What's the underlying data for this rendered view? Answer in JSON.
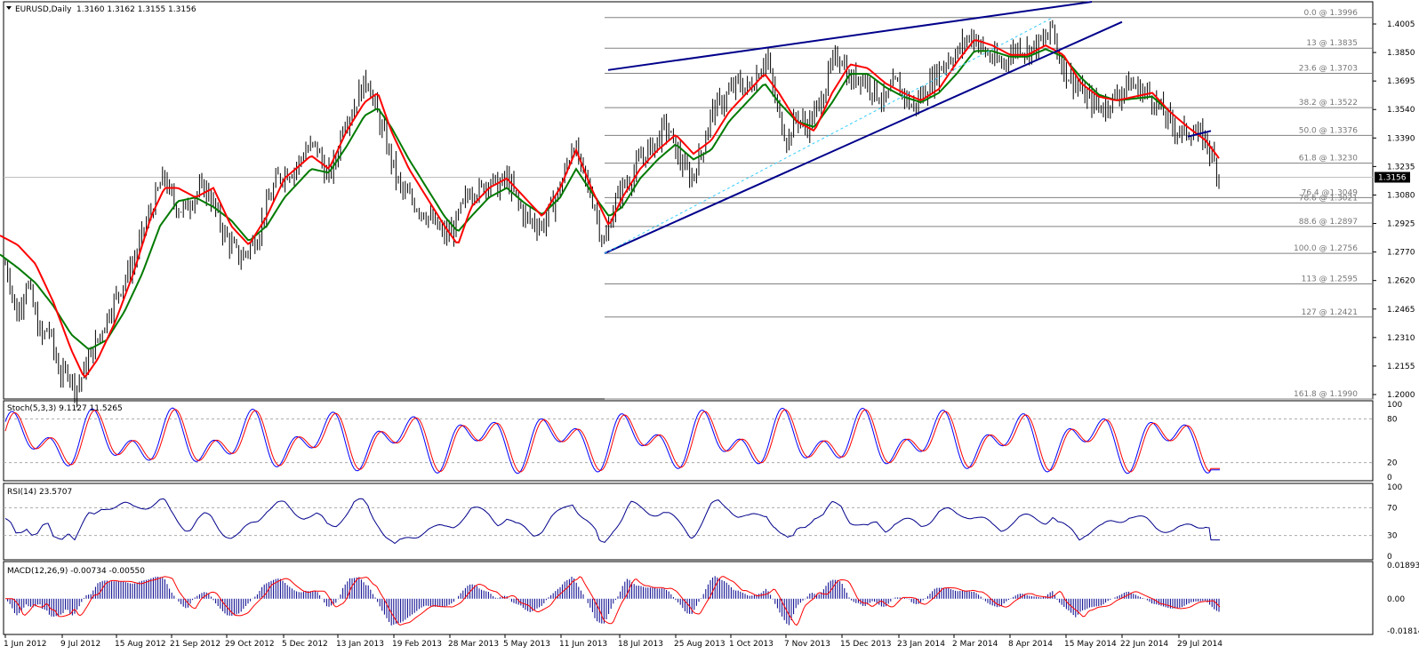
{
  "chart_data": {
    "type": "ohlc",
    "colors": {
      "price": "#000000",
      "fast_ma": "#ff0000",
      "slow_ma": "#007a00",
      "trendline": "#00008b",
      "stoch_main": "#0000ff",
      "stoch_signal": "#ff0000",
      "rsi": "#00008b",
      "macd_hist": "#00008b",
      "macd_signal": "#ff0000",
      "fib": "#808080",
      "current_price_bg": "#000000"
    },
    "main": {
      "header": {
        "symbol": "EURUSD,Daily",
        "values": "1.3160 1.3162 1.3155 1.3156"
      },
      "ylim": [
        1.199,
        1.4079
      ],
      "y_ticks": [
        "1.4005",
        "1.3850",
        "1.3695",
        "1.3540",
        "1.3390",
        "1.3235",
        "1.3080",
        "1.2925",
        "1.2770",
        "1.2620",
        "1.2465",
        "1.2310",
        "1.2155",
        "1.2000"
      ],
      "current_price": 1.3156,
      "current_price_label": "1.3156",
      "fib_levels": [
        {
          "label": "0.0 @ 1.3996",
          "value": 1.3996
        },
        {
          "label": "13 @ 1.3835",
          "value": 1.3835
        },
        {
          "label": "23.6 @ 1.3703",
          "value": 1.3703
        },
        {
          "label": "38.2 @ 1.3522",
          "value": 1.3522
        },
        {
          "label": "50.0 @ 1.3376",
          "value": 1.3376
        },
        {
          "label": "61.8 @ 1.3230",
          "value": 1.323
        },
        {
          "label": "76.4 @1.3049",
          "value": 1.3049
        },
        {
          "label": "78.6 @ 1.3021",
          "value": 1.3021
        },
        {
          "label": "88.6 @ 1.2897",
          "value": 1.2897
        },
        {
          "label": "100.0 @ 1.2756",
          "value": 1.2756
        },
        {
          "label": "113 @ 1.2595",
          "value": 1.2595
        },
        {
          "label": "127 @ 1.2421",
          "value": 1.2421
        },
        {
          "label": "161.8 @ 1.1990",
          "value": 1.199
        }
      ],
      "price_anchors": [
        [
          0,
          1.295
        ],
        [
          6,
          1.27
        ],
        [
          12,
          1.26
        ],
        [
          18,
          1.242
        ],
        [
          24,
          1.25
        ],
        [
          30,
          1.262
        ],
        [
          36,
          1.25
        ],
        [
          42,
          1.238
        ],
        [
          48,
          1.23
        ],
        [
          54,
          1.238
        ],
        [
          60,
          1.225
        ],
        [
          66,
          1.215
        ],
        [
          70,
          1.21
        ],
        [
          76,
          1.215
        ],
        [
          84,
          1.205
        ],
        [
          90,
          1.208
        ],
        [
          100,
          1.22
        ],
        [
          110,
          1.23
        ],
        [
          120,
          1.242
        ],
        [
          130,
          1.252
        ],
        [
          140,
          1.262
        ],
        [
          150,
          1.27
        ],
        [
          160,
          1.285
        ],
        [
          170,
          1.298
        ],
        [
          180,
          1.311
        ],
        [
          185,
          1.316
        ],
        [
          192,
          1.305
        ],
        [
          200,
          1.3
        ],
        [
          208,
          1.298
        ],
        [
          216,
          1.305
        ],
        [
          224,
          1.308
        ],
        [
          230,
          1.31
        ],
        [
          236,
          1.306
        ],
        [
          244,
          1.296
        ],
        [
          252,
          1.286
        ],
        [
          260,
          1.28
        ],
        [
          270,
          1.273
        ],
        [
          280,
          1.278
        ],
        [
          290,
          1.285
        ],
        [
          296,
          1.295
        ],
        [
          304,
          1.305
        ],
        [
          312,
          1.315
        ],
        [
          320,
          1.318
        ],
        [
          332,
          1.32
        ],
        [
          344,
          1.33
        ],
        [
          356,
          1.332
        ],
        [
          368,
          1.315
        ],
        [
          378,
          1.325
        ],
        [
          386,
          1.345
        ],
        [
          396,
          1.35
        ],
        [
          404,
          1.36
        ],
        [
          414,
          1.368
        ],
        [
          420,
          1.355
        ],
        [
          430,
          1.34
        ],
        [
          440,
          1.325
        ],
        [
          446,
          1.315
        ],
        [
          452,
          1.308
        ],
        [
          460,
          1.305
        ],
        [
          470,
          1.3
        ],
        [
          480,
          1.296
        ],
        [
          490,
          1.29
        ],
        [
          500,
          1.285
        ],
        [
          510,
          1.288
        ],
        [
          520,
          1.3
        ],
        [
          530,
          1.31
        ],
        [
          540,
          1.308
        ],
        [
          550,
          1.315
        ],
        [
          560,
          1.31
        ],
        [
          570,
          1.315
        ],
        [
          580,
          1.305
        ],
        [
          590,
          1.295
        ],
        [
          600,
          1.292
        ],
        [
          610,
          1.29
        ],
        [
          620,
          1.3
        ],
        [
          630,
          1.31
        ],
        [
          640,
          1.325
        ],
        [
          644,
          1.335
        ],
        [
          650,
          1.325
        ],
        [
          660,
          1.312
        ],
        [
          670,
          1.3
        ],
        [
          676,
          1.285
        ],
        [
          680,
          1.28
        ],
        [
          690,
          1.3
        ],
        [
          700,
          1.31
        ],
        [
          710,
          1.315
        ],
        [
          720,
          1.325
        ],
        [
          730,
          1.33
        ],
        [
          740,
          1.335
        ],
        [
          746,
          1.342
        ],
        [
          752,
          1.34
        ],
        [
          760,
          1.33
        ],
        [
          770,
          1.32
        ],
        [
          778,
          1.315
        ],
        [
          790,
          1.33
        ],
        [
          800,
          1.35
        ],
        [
          812,
          1.355
        ],
        [
          820,
          1.36
        ],
        [
          830,
          1.365
        ],
        [
          842,
          1.362
        ],
        [
          852,
          1.37
        ],
        [
          862,
          1.38
        ],
        [
          870,
          1.36
        ],
        [
          878,
          1.345
        ],
        [
          886,
          1.335
        ],
        [
          896,
          1.348
        ],
        [
          906,
          1.342
        ],
        [
          916,
          1.348
        ],
        [
          926,
          1.36
        ],
        [
          936,
          1.375
        ],
        [
          946,
          1.38
        ],
        [
          956,
          1.365
        ],
        [
          966,
          1.37
        ],
        [
          976,
          1.365
        ],
        [
          986,
          1.36
        ],
        [
          996,
          1.355
        ],
        [
          1006,
          1.365
        ],
        [
          1016,
          1.36
        ],
        [
          1026,
          1.352
        ],
        [
          1036,
          1.358
        ],
        [
          1046,
          1.365
        ],
        [
          1056,
          1.372
        ],
        [
          1066,
          1.378
        ],
        [
          1076,
          1.38
        ],
        [
          1086,
          1.388
        ],
        [
          1096,
          1.39
        ],
        [
          1106,
          1.382
        ],
        [
          1116,
          1.378
        ],
        [
          1126,
          1.375
        ],
        [
          1136,
          1.38
        ],
        [
          1146,
          1.385
        ],
        [
          1156,
          1.382
        ],
        [
          1166,
          1.385
        ],
        [
          1176,
          1.388
        ],
        [
          1184,
          1.395
        ],
        [
          1190,
          1.38
        ],
        [
          1200,
          1.37
        ],
        [
          1210,
          1.365
        ],
        [
          1220,
          1.358
        ],
        [
          1230,
          1.355
        ],
        [
          1240,
          1.352
        ],
        [
          1250,
          1.356
        ],
        [
          1260,
          1.36
        ],
        [
          1270,
          1.365
        ],
        [
          1280,
          1.362
        ],
        [
          1290,
          1.36
        ],
        [
          1300,
          1.355
        ],
        [
          1310,
          1.348
        ],
        [
          1320,
          1.342
        ],
        [
          1330,
          1.339
        ],
        [
          1340,
          1.34
        ],
        [
          1348,
          1.337
        ],
        [
          1356,
          1.336
        ],
        [
          1362,
          1.328
        ],
        [
          1368,
          1.32
        ],
        [
          1372,
          1.316
        ]
      ],
      "fast_ma_anchors": [
        [
          0,
          1.285
        ],
        [
          20,
          1.28
        ],
        [
          40,
          1.27
        ],
        [
          60,
          1.25
        ],
        [
          80,
          1.225
        ],
        [
          95,
          1.21
        ],
        [
          110,
          1.22
        ],
        [
          130,
          1.24
        ],
        [
          150,
          1.265
        ],
        [
          170,
          1.295
        ],
        [
          185,
          1.31
        ],
        [
          200,
          1.31
        ],
        [
          220,
          1.305
        ],
        [
          240,
          1.31
        ],
        [
          260,
          1.29
        ],
        [
          280,
          1.28
        ],
        [
          300,
          1.295
        ],
        [
          320,
          1.315
        ],
        [
          350,
          1.327
        ],
        [
          370,
          1.32
        ],
        [
          390,
          1.34
        ],
        [
          410,
          1.355
        ],
        [
          425,
          1.36
        ],
        [
          440,
          1.34
        ],
        [
          460,
          1.32
        ],
        [
          480,
          1.305
        ],
        [
          500,
          1.29
        ],
        [
          515,
          1.28
        ],
        [
          530,
          1.3
        ],
        [
          550,
          1.31
        ],
        [
          570,
          1.315
        ],
        [
          590,
          1.305
        ],
        [
          610,
          1.295
        ],
        [
          630,
          1.31
        ],
        [
          648,
          1.33
        ],
        [
          665,
          1.31
        ],
        [
          685,
          1.29
        ],
        [
          700,
          1.305
        ],
        [
          720,
          1.32
        ],
        [
          740,
          1.33
        ],
        [
          760,
          1.338
        ],
        [
          780,
          1.328
        ],
        [
          800,
          1.335
        ],
        [
          820,
          1.35
        ],
        [
          840,
          1.36
        ],
        [
          860,
          1.37
        ],
        [
          876,
          1.36
        ],
        [
          896,
          1.345
        ],
        [
          916,
          1.34
        ],
        [
          936,
          1.36
        ],
        [
          956,
          1.375
        ],
        [
          976,
          1.373
        ],
        [
          996,
          1.365
        ],
        [
          1016,
          1.36
        ],
        [
          1036,
          1.356
        ],
        [
          1056,
          1.362
        ],
        [
          1076,
          1.376
        ],
        [
          1096,
          1.388
        ],
        [
          1116,
          1.385
        ],
        [
          1136,
          1.38
        ],
        [
          1156,
          1.38
        ],
        [
          1176,
          1.385
        ],
        [
          1196,
          1.38
        ],
        [
          1216,
          1.365
        ],
        [
          1236,
          1.358
        ],
        [
          1256,
          1.356
        ],
        [
          1276,
          1.358
        ],
        [
          1296,
          1.36
        ],
        [
          1316,
          1.35
        ],
        [
          1336,
          1.342
        ],
        [
          1356,
          1.335
        ],
        [
          1372,
          1.325
        ]
      ],
      "slow_ma_anchors": [
        [
          0,
          1.275
        ],
        [
          20,
          1.268
        ],
        [
          40,
          1.26
        ],
        [
          60,
          1.248
        ],
        [
          80,
          1.233
        ],
        [
          100,
          1.225
        ],
        [
          120,
          1.23
        ],
        [
          140,
          1.245
        ],
        [
          160,
          1.265
        ],
        [
          180,
          1.29
        ],
        [
          200,
          1.303
        ],
        [
          220,
          1.305
        ],
        [
          240,
          1.3
        ],
        [
          260,
          1.293
        ],
        [
          280,
          1.282
        ],
        [
          300,
          1.29
        ],
        [
          320,
          1.305
        ],
        [
          350,
          1.32
        ],
        [
          370,
          1.318
        ],
        [
          390,
          1.332
        ],
        [
          410,
          1.348
        ],
        [
          425,
          1.352
        ],
        [
          440,
          1.342
        ],
        [
          460,
          1.325
        ],
        [
          480,
          1.31
        ],
        [
          500,
          1.295
        ],
        [
          515,
          1.287
        ],
        [
          530,
          1.295
        ],
        [
          550,
          1.305
        ],
        [
          570,
          1.31
        ],
        [
          590,
          1.302
        ],
        [
          610,
          1.296
        ],
        [
          630,
          1.305
        ],
        [
          648,
          1.32
        ],
        [
          665,
          1.308
        ],
        [
          685,
          1.295
        ],
        [
          700,
          1.3
        ],
        [
          720,
          1.315
        ],
        [
          740,
          1.325
        ],
        [
          760,
          1.333
        ],
        [
          780,
          1.325
        ],
        [
          800,
          1.33
        ],
        [
          820,
          1.345
        ],
        [
          840,
          1.355
        ],
        [
          860,
          1.365
        ],
        [
          876,
          1.355
        ],
        [
          896,
          1.345
        ],
        [
          916,
          1.342
        ],
        [
          936,
          1.355
        ],
        [
          956,
          1.37
        ],
        [
          976,
          1.37
        ],
        [
          996,
          1.363
        ],
        [
          1016,
          1.358
        ],
        [
          1036,
          1.355
        ],
        [
          1056,
          1.36
        ],
        [
          1076,
          1.37
        ],
        [
          1096,
          1.382
        ],
        [
          1116,
          1.382
        ],
        [
          1136,
          1.379
        ],
        [
          1156,
          1.379
        ],
        [
          1176,
          1.383
        ],
        [
          1196,
          1.379
        ],
        [
          1216,
          1.368
        ],
        [
          1236,
          1.359
        ],
        [
          1256,
          1.356
        ],
        [
          1276,
          1.357
        ],
        [
          1296,
          1.358
        ],
        [
          1316,
          1.35
        ]
      ],
      "trendlines": [
        {
          "x1": 684,
          "y1": 1.372,
          "x2": 1228,
          "y2": 1.4079
        },
        {
          "x1": 680,
          "y1": 1.2756,
          "x2": 1262,
          "y2": 1.3973
        },
        {
          "x1": 1336,
          "y1": 1.337,
          "x2": 1362,
          "y2": 1.34
        }
      ]
    },
    "stoch": {
      "label": "Stoch(5,3,3) 9.1127 11.5265",
      "ylim": [
        0,
        100
      ],
      "y_ticks": [
        "100",
        "80",
        "20",
        "0"
      ],
      "levels": [
        80,
        20
      ]
    },
    "rsi": {
      "label": "RSI(14) 23.5707",
      "ylim": [
        0,
        100
      ],
      "y_ticks": [
        "100",
        "70",
        "30",
        "0"
      ],
      "levels": [
        70,
        30
      ]
    },
    "macd": {
      "label": "MACD(12,26,9) -0.00734 -0.00550",
      "ylim": [
        -0.01814,
        0.01893
      ],
      "y_ticks": [
        "0.01893",
        "0.00",
        "-0.01814"
      ]
    },
    "x_ticks": [
      "1 Jun 2012",
      "9 Jul 2012",
      "15 Aug 2012",
      "21 Sep 2012",
      "29 Oct 2012",
      "5 Dec 2012",
      "13 Jan 2013",
      "19 Feb 2013",
      "28 Mar 2013",
      "5 May 2013",
      "11 Jun 2013",
      "18 Jul 2013",
      "25 Aug 2013",
      "1 Oct 2013",
      "7 Nov 2013",
      "15 Dec 2013",
      "23 Jan 2014",
      "2 Mar 2014",
      "8 Apr 2014",
      "15 May 2014",
      "22 Jun 2014",
      "29 Jul 2014"
    ]
  }
}
